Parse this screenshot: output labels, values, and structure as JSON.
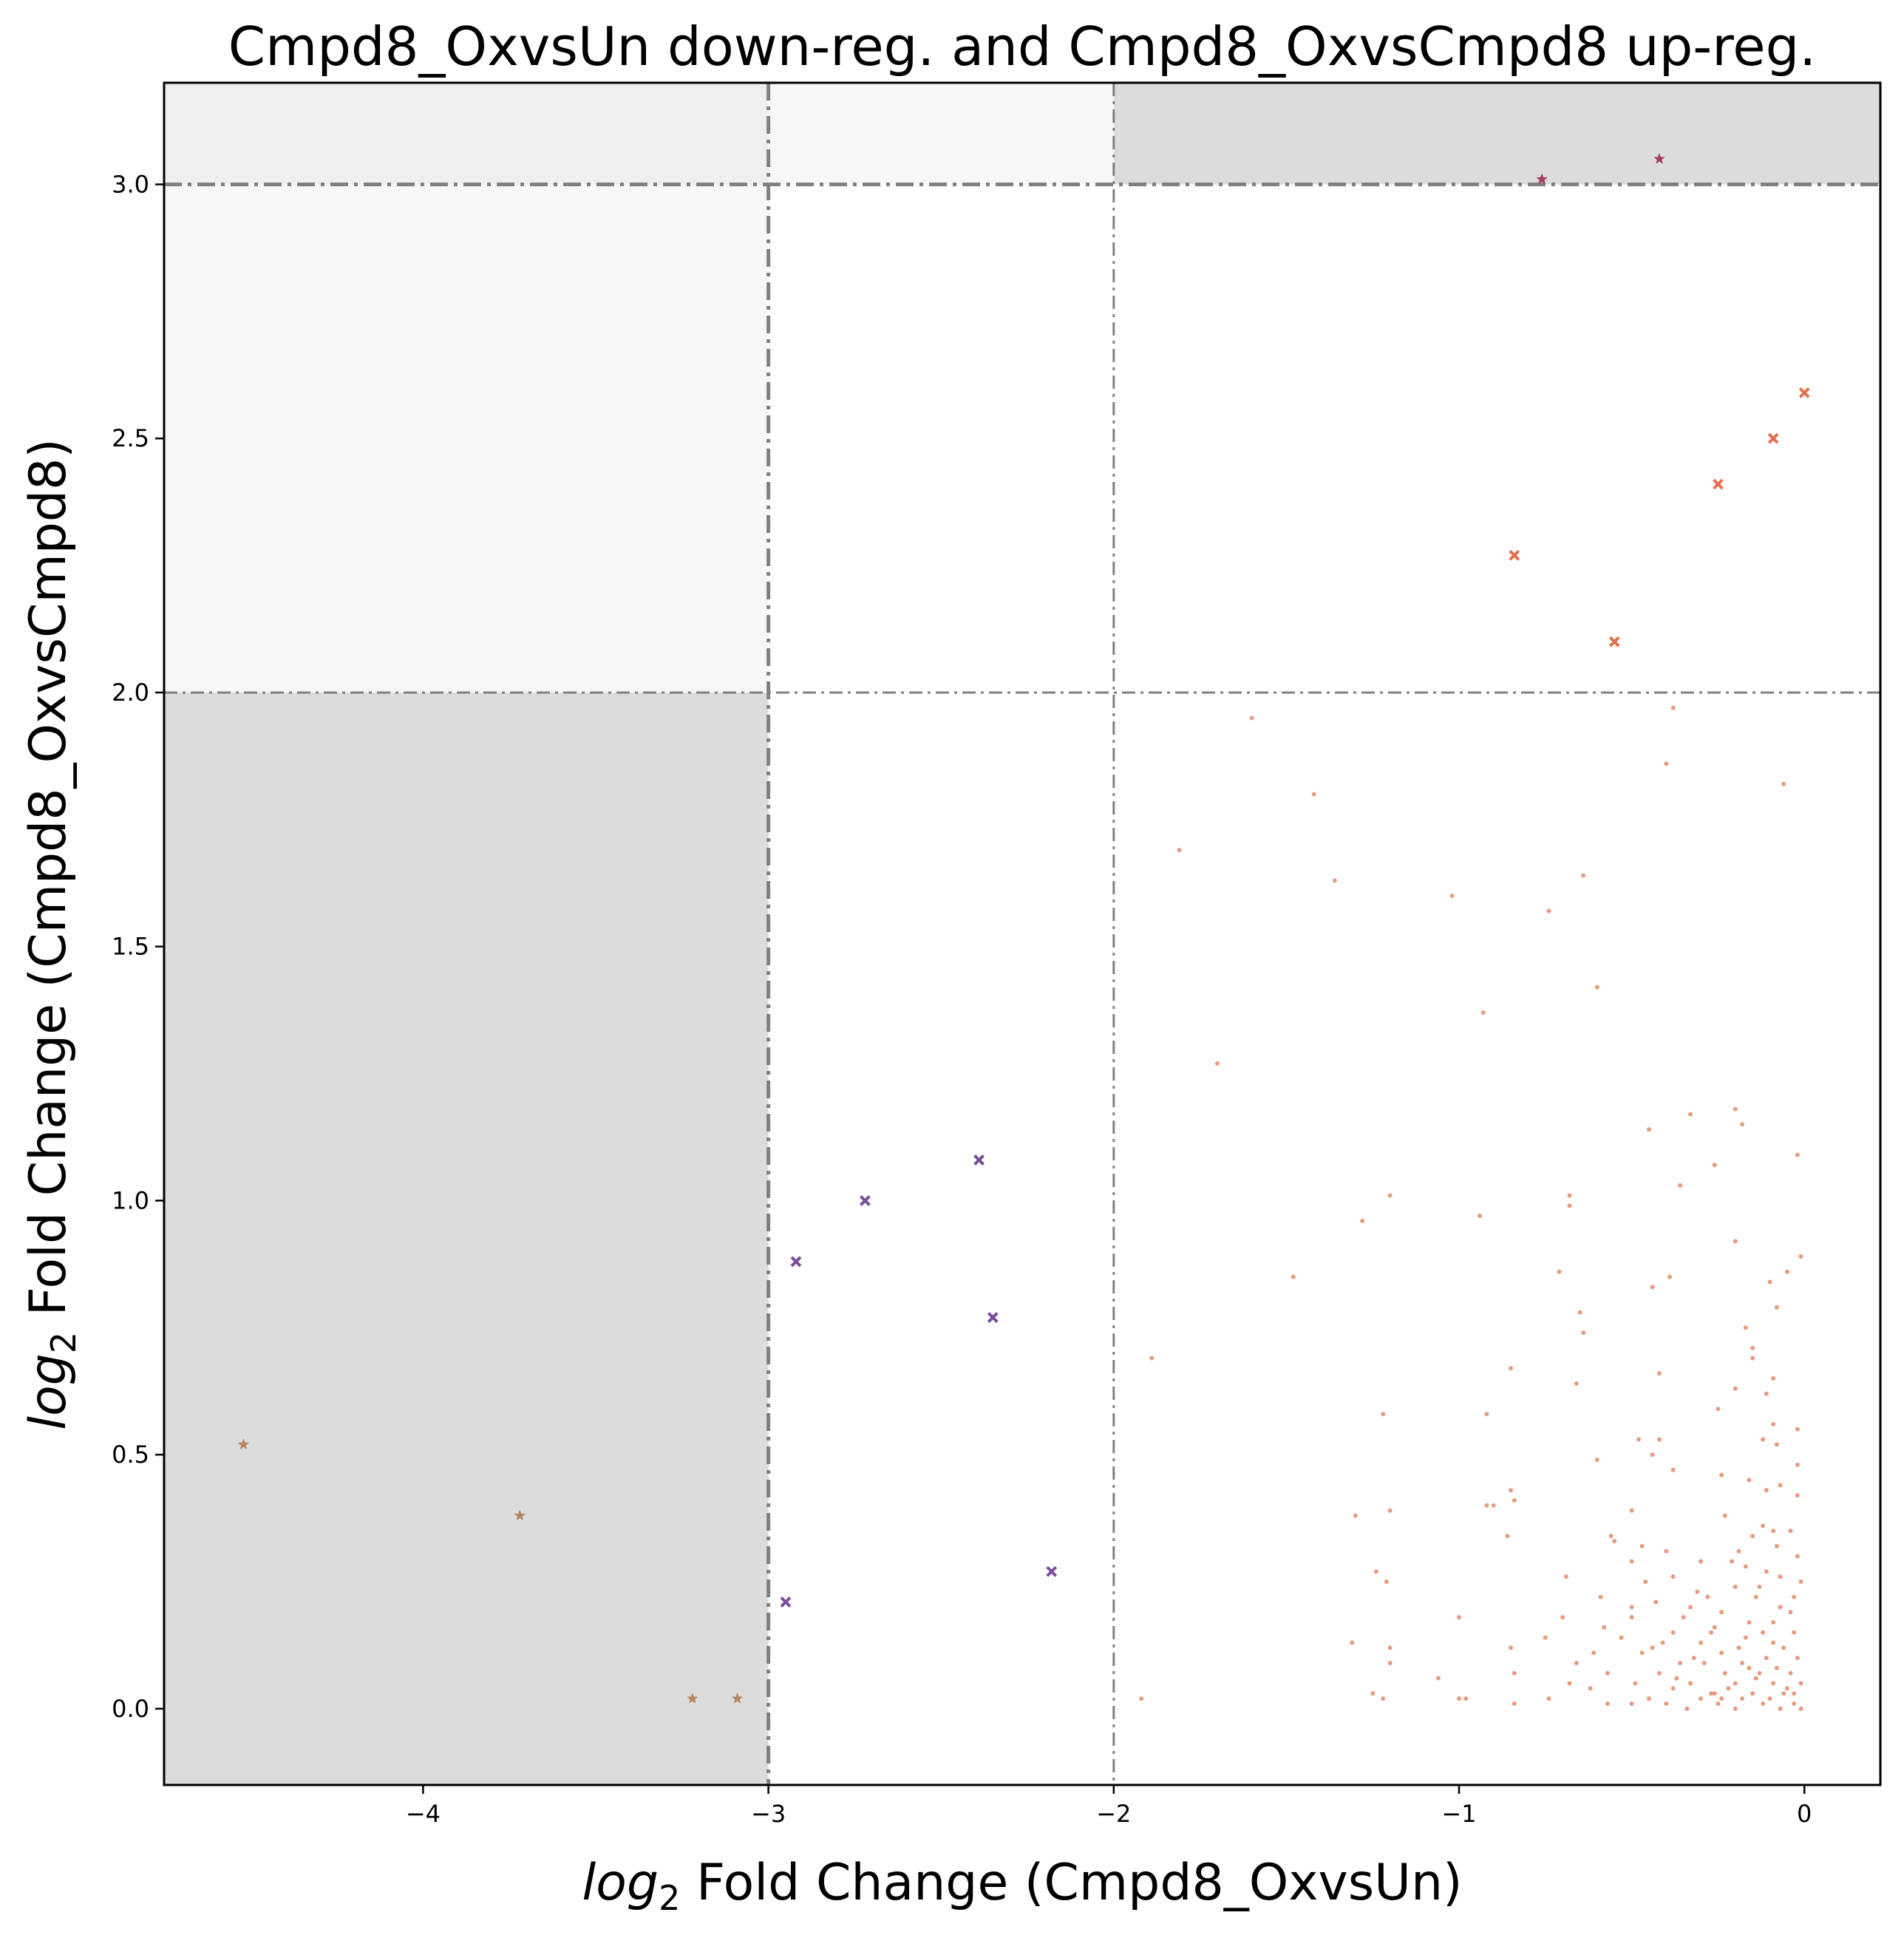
{
  "chart_data": {
    "type": "scatter",
    "title": "Cmpd8_OxvsUn down-reg. and Cmpd8_OxvsCmpd8 up-reg.",
    "xlabel": {
      "prefix": "log",
      "sub": "2",
      "rest": " Fold Change (Cmpd8_OxvsUn)"
    },
    "ylabel": {
      "prefix": "log",
      "sub": "2",
      "rest": " Fold Change (Cmpd8_OxvsCmpd8)"
    },
    "xlim": [
      -4.75,
      0.22
    ],
    "ylim": [
      -0.15,
      3.2
    ],
    "xticks": [
      -4,
      -3,
      -2,
      -1,
      0
    ],
    "xtick_labels": [
      "−4",
      "−3",
      "−2",
      "−1",
      "0"
    ],
    "yticks": [
      0.0,
      0.5,
      1.0,
      1.5,
      2.0,
      2.5,
      3.0
    ],
    "ytick_labels": [
      "0.0",
      "0.5",
      "1.0",
      "1.5",
      "2.0",
      "2.5",
      "3.0"
    ],
    "grid": false,
    "threshold_lines": {
      "x": [
        {
          "value": -3,
          "style": "heavy"
        },
        {
          "value": -2,
          "style": "light"
        }
      ],
      "y": [
        {
          "value": 3,
          "style": "heavy"
        },
        {
          "value": 2,
          "style": "light"
        }
      ]
    },
    "shaded_regions": [
      {
        "x": [
          -4.75,
          -3
        ],
        "y": [
          3,
          3.2
        ],
        "color": "#efefef"
      },
      {
        "x": [
          -3,
          -2
        ],
        "y": [
          3,
          3.2
        ],
        "color": "#f7f7f7"
      },
      {
        "x": [
          -2,
          0.22
        ],
        "y": [
          3,
          3.2
        ],
        "color": "#dcdcdc"
      },
      {
        "x": [
          -4.75,
          -3
        ],
        "y": [
          2,
          3
        ],
        "color": "#f7f7f7"
      },
      {
        "x": [
          -4.75,
          -3
        ],
        "y": [
          -0.15,
          2
        ],
        "color": "#dcdcdc"
      }
    ],
    "series": [
      {
        "marker": "star",
        "color": "#b5845f",
        "points": [
          [
            -4.52,
            0.52
          ],
          [
            -3.72,
            0.38
          ],
          [
            -3.22,
            0.02
          ],
          [
            -3.09,
            0.02
          ]
        ]
      },
      {
        "marker": "x",
        "color": "#7a4c9e",
        "points": [
          [
            -2.95,
            0.21
          ],
          [
            -2.92,
            0.88
          ],
          [
            -2.72,
            1.0
          ],
          [
            -2.39,
            1.08
          ],
          [
            -2.35,
            0.77
          ],
          [
            -2.18,
            0.27
          ]
        ]
      },
      {
        "marker": "star",
        "color": "#a53b5e",
        "points": [
          [
            -0.76,
            3.01
          ],
          [
            -0.42,
            3.05
          ]
        ]
      },
      {
        "marker": "x",
        "color": "#e0714f",
        "points": [
          [
            -0.84,
            2.27
          ],
          [
            -0.55,
            2.1
          ],
          [
            -0.25,
            2.41
          ],
          [
            -0.09,
            2.5
          ],
          [
            0.0,
            2.59
          ]
        ]
      },
      {
        "marker": "dot",
        "color": "#e58a6a",
        "points": [
          [
            -1.6,
            1.95
          ],
          [
            -1.42,
            1.8
          ],
          [
            -1.81,
            1.69
          ],
          [
            -1.36,
            1.63
          ],
          [
            -1.02,
            1.6
          ],
          [
            -0.64,
            1.64
          ],
          [
            -0.74,
            1.57
          ],
          [
            -0.6,
            1.42
          ],
          [
            -0.93,
            1.37
          ],
          [
            -1.7,
            1.27
          ],
          [
            -0.38,
            1.97
          ],
          [
            -0.4,
            1.86
          ],
          [
            -0.06,
            1.82
          ],
          [
            -0.2,
            1.18
          ],
          [
            -0.33,
            1.17
          ],
          [
            -0.18,
            1.15
          ],
          [
            -0.45,
            1.14
          ],
          [
            -0.26,
            1.07
          ],
          [
            -0.02,
            1.09
          ],
          [
            -0.36,
            1.03
          ],
          [
            -1.2,
            1.01
          ],
          [
            -0.68,
            1.01
          ],
          [
            -0.68,
            0.99
          ],
          [
            -0.94,
            0.97
          ],
          [
            -1.28,
            0.96
          ],
          [
            -0.2,
            0.92
          ],
          [
            -0.01,
            0.89
          ],
          [
            -0.05,
            0.86
          ],
          [
            -0.71,
            0.86
          ],
          [
            -1.48,
            0.85
          ],
          [
            -0.39,
            0.85
          ],
          [
            -0.44,
            0.83
          ],
          [
            -0.1,
            0.84
          ],
          [
            -0.65,
            0.78
          ],
          [
            -0.08,
            0.79
          ],
          [
            -0.64,
            0.74
          ],
          [
            -0.17,
            0.75
          ],
          [
            -0.15,
            0.71
          ],
          [
            -1.89,
            0.69
          ],
          [
            -0.15,
            0.69
          ],
          [
            -0.85,
            0.67
          ],
          [
            -0.42,
            0.66
          ],
          [
            -0.09,
            0.65
          ],
          [
            -0.2,
            0.63
          ],
          [
            -0.11,
            0.62
          ],
          [
            -0.66,
            0.64
          ],
          [
            -1.22,
            0.58
          ],
          [
            -0.92,
            0.58
          ],
          [
            -0.25,
            0.59
          ],
          [
            -0.09,
            0.56
          ],
          [
            -0.02,
            0.55
          ],
          [
            -0.48,
            0.53
          ],
          [
            -0.42,
            0.53
          ],
          [
            -0.12,
            0.53
          ],
          [
            -0.08,
            0.52
          ],
          [
            -0.44,
            0.5
          ],
          [
            -0.6,
            0.49
          ],
          [
            -0.38,
            0.47
          ],
          [
            -0.02,
            0.48
          ],
          [
            -0.24,
            0.46
          ],
          [
            -0.16,
            0.45
          ],
          [
            -0.07,
            0.44
          ],
          [
            -0.11,
            0.43
          ],
          [
            -0.85,
            0.43
          ],
          [
            -0.84,
            0.41
          ],
          [
            -0.02,
            0.42
          ],
          [
            -0.92,
            0.4
          ],
          [
            -0.9,
            0.4
          ],
          [
            -0.5,
            0.39
          ],
          [
            -1.2,
            0.39
          ],
          [
            -1.3,
            0.38
          ],
          [
            -0.23,
            0.38
          ],
          [
            -0.12,
            0.36
          ],
          [
            -0.09,
            0.35
          ],
          [
            -0.04,
            0.35
          ],
          [
            -0.86,
            0.34
          ],
          [
            -0.56,
            0.34
          ],
          [
            -0.15,
            0.34
          ],
          [
            -0.55,
            0.33
          ],
          [
            -0.47,
            0.32
          ],
          [
            -0.4,
            0.31
          ],
          [
            -0.19,
            0.31
          ],
          [
            -0.08,
            0.32
          ],
          [
            -0.02,
            0.3
          ],
          [
            -0.5,
            0.29
          ],
          [
            -0.3,
            0.29
          ],
          [
            -0.17,
            0.28
          ],
          [
            -0.11,
            0.27
          ],
          [
            -1.24,
            0.27
          ],
          [
            -1.21,
            0.25
          ],
          [
            -0.69,
            0.26
          ],
          [
            -0.38,
            0.26
          ],
          [
            -0.07,
            0.26
          ],
          [
            -0.01,
            0.25
          ],
          [
            -0.2,
            0.24
          ],
          [
            -0.31,
            0.23
          ],
          [
            -0.59,
            0.22
          ],
          [
            -0.43,
            0.21
          ],
          [
            -0.14,
            0.22
          ],
          [
            -0.5,
            0.2
          ],
          [
            -0.33,
            0.2
          ],
          [
            -0.24,
            0.19
          ],
          [
            -0.04,
            0.19
          ],
          [
            -0.7,
            0.18
          ],
          [
            -0.5,
            0.18
          ],
          [
            -0.16,
            0.17
          ],
          [
            -0.09,
            0.17
          ],
          [
            -1.0,
            0.18
          ],
          [
            -0.58,
            0.16
          ],
          [
            -0.38,
            0.15
          ],
          [
            -0.27,
            0.15
          ],
          [
            -0.12,
            0.15
          ],
          [
            -0.03,
            0.15
          ],
          [
            -0.75,
            0.14
          ],
          [
            -0.41,
            0.13
          ],
          [
            -0.3,
            0.13
          ],
          [
            -0.19,
            0.12
          ],
          [
            -0.06,
            0.12
          ],
          [
            -1.31,
            0.13
          ],
          [
            -1.2,
            0.12
          ],
          [
            -0.85,
            0.12
          ],
          [
            -0.47,
            0.11
          ],
          [
            -0.24,
            0.11
          ],
          [
            -0.11,
            0.1
          ],
          [
            -0.02,
            0.1
          ],
          [
            -0.66,
            0.09
          ],
          [
            -0.36,
            0.09
          ],
          [
            -0.29,
            0.09
          ],
          [
            -0.16,
            0.08
          ],
          [
            -0.08,
            0.08
          ],
          [
            -1.2,
            0.09
          ],
          [
            -0.57,
            0.07
          ],
          [
            -0.42,
            0.07
          ],
          [
            -0.23,
            0.07
          ],
          [
            -0.13,
            0.07
          ],
          [
            -0.04,
            0.07
          ],
          [
            -1.06,
            0.06
          ],
          [
            -0.84,
            0.07
          ],
          [
            -0.68,
            0.05
          ],
          [
            -0.49,
            0.05
          ],
          [
            -0.33,
            0.05
          ],
          [
            -0.2,
            0.05
          ],
          [
            -0.09,
            0.05
          ],
          [
            -0.01,
            0.05
          ],
          [
            -0.62,
            0.04
          ],
          [
            -0.38,
            0.04
          ],
          [
            -0.27,
            0.03
          ],
          [
            -0.15,
            0.03
          ],
          [
            -0.06,
            0.03
          ],
          [
            -0.03,
            0.03
          ],
          [
            -1.25,
            0.03
          ],
          [
            -0.45,
            0.02
          ],
          [
            -0.3,
            0.02
          ],
          [
            -0.18,
            0.02
          ],
          [
            -0.1,
            0.02
          ],
          [
            -1.92,
            0.02
          ],
          [
            -1.22,
            0.02
          ],
          [
            -1.0,
            0.02
          ],
          [
            -0.98,
            0.02
          ],
          [
            -0.74,
            0.02
          ],
          [
            -0.5,
            0.01
          ],
          [
            -0.4,
            0.01
          ],
          [
            -0.25,
            0.01
          ],
          [
            -0.12,
            0.01
          ],
          [
            -0.03,
            0.01
          ],
          [
            -0.84,
            0.01
          ],
          [
            -0.57,
            0.01
          ],
          [
            -0.34,
            0.0
          ],
          [
            -0.2,
            0.0
          ],
          [
            -0.07,
            0.0
          ],
          [
            -0.01,
            0.0
          ],
          [
            -0.26,
            0.03
          ],
          [
            -0.24,
            0.02
          ],
          [
            -0.22,
            0.04
          ],
          [
            -0.14,
            0.06
          ],
          [
            -0.05,
            0.04
          ],
          [
            -0.32,
            0.1
          ],
          [
            -0.17,
            0.14
          ],
          [
            -0.07,
            0.2
          ],
          [
            -0.28,
            0.22
          ],
          [
            -0.35,
            0.18
          ],
          [
            -0.13,
            0.24
          ],
          [
            -0.46,
            0.25
          ],
          [
            -0.21,
            0.29
          ],
          [
            -0.03,
            0.22
          ],
          [
            -0.44,
            0.12
          ],
          [
            -0.53,
            0.14
          ],
          [
            -0.26,
            0.16
          ],
          [
            -0.09,
            0.13
          ],
          [
            -0.61,
            0.11
          ],
          [
            -0.37,
            0.06
          ],
          [
            -0.18,
            0.09
          ]
        ]
      }
    ]
  }
}
